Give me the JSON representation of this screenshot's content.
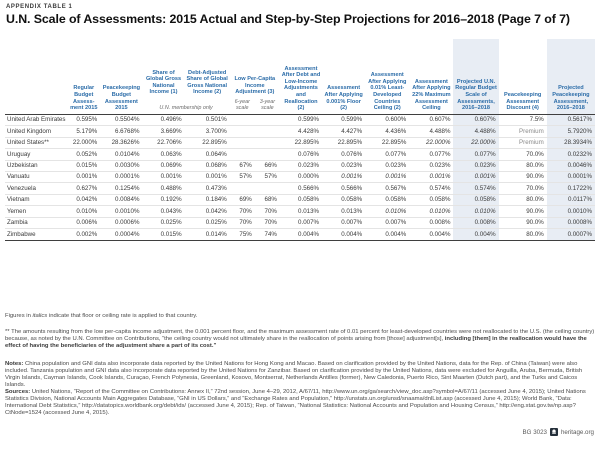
{
  "doc": {
    "kicker": "APPENDIX TABLE 1",
    "title": "U.N. Scale of Assessments: 2015 Actual and Step-by-Step Projections for 2016–2018 (Page 7 of 7)"
  },
  "table": {
    "headers": {
      "regular_budget": "Regular Budget Assess­ment 2015",
      "peacekeeping_budget": "Peacekeeping Budget Assessment 2015",
      "share_gni": "Share of Global Gross National Income (1)",
      "debt_adjusted": "Debt-Adjusted Share of Global Gross National Income (2)",
      "low_per_capita": "Low Per-Capita Income Adjustment (3)",
      "un_membership_note": "U.N. membership only",
      "scale_6yr": "6-year scale",
      "scale_3yr": "3-year scale",
      "after_debt_low_income": "Assessment After Debt and Low-Income Adjustments and Reallocation (2)",
      "after_floor": "Assessment After Applying 0.001% Floor (2)",
      "after_ldc_ceiling": "Assessment After Applying 0.01% Least-Developed Countries Ceiling (2)",
      "after_max_ceiling": "Assessment After Applying 22% Maximum Assessment Ceiling",
      "projected_regular": "Projected U.N. Regular Budget Scale of Assessments, 2016–2018",
      "pk_discount": "Peacekeeping Assessment Discount (4)",
      "projected_pk": "Projected Peacekeeping Assessment, 2016–2018"
    },
    "rows": [
      {
        "country": "United Arab Emirates",
        "values": [
          "0.595%",
          "0.5504%",
          "0.496%",
          "0.501%",
          "",
          "",
          "0.599%",
          "0.599%",
          "0.600%",
          "0.607%",
          "0.607%",
          "7.5%",
          "0.5617%"
        ],
        "italics": []
      },
      {
        "country": "United Kingdom",
        "values": [
          "5.179%",
          "6.6768%",
          "3.669%",
          "3.700%",
          "",
          "",
          "4.428%",
          "4.427%",
          "4.436%",
          "4.488%",
          "4.488%",
          "Premium",
          "5.7920%"
        ],
        "italics": []
      },
      {
        "country": "United States**",
        "values": [
          "22.000%",
          "28.3626%",
          "22.706%",
          "22.895%",
          "",
          "",
          "22.895%",
          "22.895%",
          "22.895%",
          "22.000%",
          "22.000%",
          "Premium",
          "28.3934%"
        ],
        "italics": [
          9,
          10
        ]
      },
      {
        "country": "Uruguay",
        "values": [
          "0.052%",
          "0.0104%",
          "0.063%",
          "0.064%",
          "",
          "",
          "0.076%",
          "0.076%",
          "0.077%",
          "0.077%",
          "0.077%",
          "70.0%",
          "0.0232%"
        ],
        "italics": []
      },
      {
        "country": "Uzbekistan",
        "values": [
          "0.015%",
          "0.0030%",
          "0.069%",
          "0.068%",
          "67%",
          "66%",
          "0.023%",
          "0.023%",
          "0.023%",
          "0.023%",
          "0.023%",
          "80.0%",
          "0.0046%"
        ],
        "italics": []
      },
      {
        "country": "Vanuatu",
        "values": [
          "0.001%",
          "0.0001%",
          "0.001%",
          "0.001%",
          "57%",
          "57%",
          "0.000%",
          "0.001%",
          "0.001%",
          "0.001%",
          "0.001%",
          "90.0%",
          "0.0001%"
        ],
        "italics": [
          7,
          8,
          9,
          10
        ]
      },
      {
        "country": "Venezuela",
        "values": [
          "0.627%",
          "0.1254%",
          "0.488%",
          "0.473%",
          "",
          "",
          "0.566%",
          "0.566%",
          "0.567%",
          "0.574%",
          "0.574%",
          "70.0%",
          "0.1722%"
        ],
        "italics": []
      },
      {
        "country": "Vietnam",
        "values": [
          "0.042%",
          "0.0084%",
          "0.192%",
          "0.184%",
          "69%",
          "68%",
          "0.058%",
          "0.058%",
          "0.058%",
          "0.058%",
          "0.058%",
          "80.0%",
          "0.0117%"
        ],
        "italics": []
      },
      {
        "country": "Yemen",
        "values": [
          "0.010%",
          "0.0010%",
          "0.043%",
          "0.042%",
          "70%",
          "70%",
          "0.013%",
          "0.013%",
          "0.010%",
          "0.010%",
          "0.010%",
          "90.0%",
          "0.0010%"
        ],
        "italics": [
          8,
          9,
          10
        ]
      },
      {
        "country": "Zambia",
        "values": [
          "0.006%",
          "0.0006%",
          "0.025%",
          "0.025%",
          "70%",
          "70%",
          "0.007%",
          "0.007%",
          "0.007%",
          "0.008%",
          "0.008%",
          "90.0%",
          "0.0008%"
        ],
        "italics": []
      },
      {
        "country": "Zimbabwe",
        "values": [
          "0.002%",
          "0.0004%",
          "0.015%",
          "0.014%",
          "75%",
          "74%",
          "0.004%",
          "0.004%",
          "0.004%",
          "0.004%",
          "0.004%",
          "80.0%",
          "0.0007%"
        ],
        "italics": []
      }
    ],
    "highlight_color": "#e8edf4",
    "header_color": "#2b6ca8"
  },
  "footnotes": {
    "fn1_pre": "Figures in ",
    "fn1_italic": "italics",
    "fn1_post": " indicate that floor or ceiling rate is applied to that country.",
    "fn2_text": "** The amounts resulting from the low per-capita income adjustment, the 0.001 percent floor, and the maximum assessment rate of 0.01 percent for least-developed countries were not reallocated to the U.S. (the ceiling country) because, as noted by the U.N. Committee on Contributions, “the ceiling country would not ultimately share in the reallocation of points arising from [those] adjustment[s], ",
    "fn2_bold": "including [them] in the reallocation would have the effect of having the beneficiaries of the adjustment share a part of its cost.”",
    "notes_label": "Notes:",
    "notes_text": " China population and GNI data also incorporate data reported by the United Nations for Hong Kong and Macao. Based on clarification provided by the United Nations, data for the Rep. of China (Taiwan) were also included. Tanzania population and GNI data also incorporate data reported by the United Nations for Zanzibar. Based on clarification provided by the United Nations, data were excluded for Anguilla, Aruba, Bermuda, British Virgin Islands, Cayman Islands, Cook Islands, Curaçao, French Polynesia, Greenland, Kosovo, Montserrat, Netherlands Antilles (former), New Caledonia, Puerto Rico, Sint Maarten (Dutch part), and the Turks and Caicos Islands.",
    "sources_label": "Sources:",
    "sources_text": " United Nations, “Report of the Committee on Contributions: Annex II,” 72nd session, June 4–29, 2012, A/67/11, http://www.un.org/ga/search/view_doc.asp?symbol=A/67/11 (accessed June 4, 2015); United Nations Statistics Division, National Accounts Main Aggregates Database, “GNI in US Dollars,” and “Exchange Rates and Population,” http://unstats.un.org/unsd/snaama/dnlList.asp (accessed June 4, 2015); World Bank, “Data: International Debt Statistics,” http://datatopics.worldbank.org/debt/ids/ (accessed June 4, 2015); Rep. of Taiwan, “National Statistics: National Accounts and Population and Housing Census,” http://eng.stat.gov.tw/np.asp?CtNode=1524 (accessed June 4, 2015)."
  },
  "branding": {
    "doc_id": "BG 3023",
    "site": "heritage.org"
  }
}
